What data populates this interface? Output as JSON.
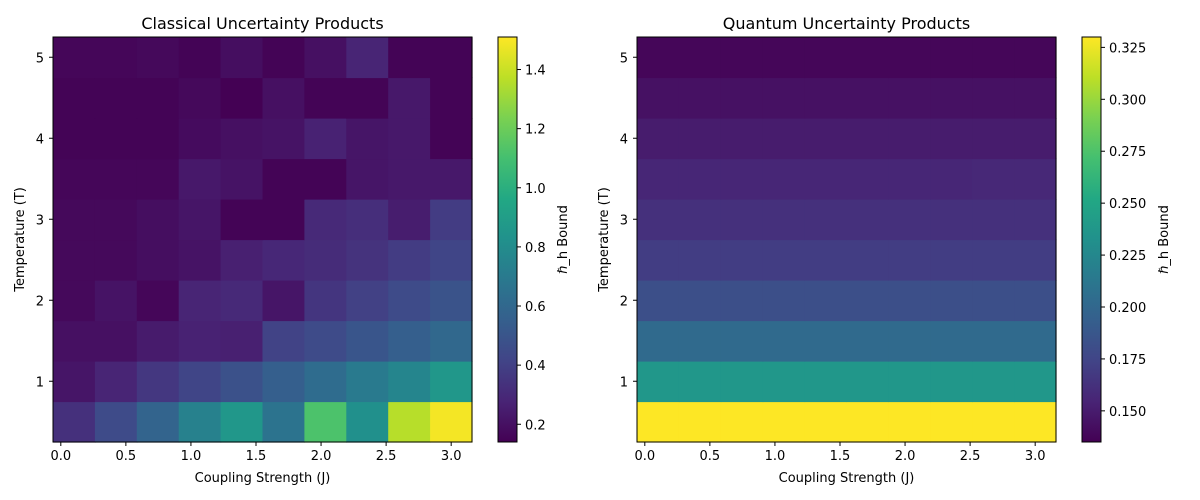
{
  "chart_data": [
    {
      "type": "heatmap",
      "title": "Classical Uncertainty Products",
      "xlabel": "Coupling Strength (J)",
      "ylabel": "Temperature (T)",
      "colorbar_label": "ℏ_h Bound",
      "colormap": "viridis",
      "x_range": [
        -0.06,
        3.16
      ],
      "y_range": [
        0.25,
        5.25
      ],
      "x_ticks": [
        "0.0",
        "0.5",
        "1.0",
        "1.5",
        "2.0",
        "2.5",
        "3.0"
      ],
      "y_ticks": [
        "1",
        "2",
        "3",
        "4",
        "5"
      ],
      "x_tick_values": [
        0,
        0.5,
        1.0,
        1.5,
        2.0,
        2.5,
        3.0
      ],
      "y_tick_values": [
        1,
        2,
        3,
        4,
        5
      ],
      "colorbar_range": [
        0.14,
        1.51
      ],
      "colorbar_ticks": [
        "0.2",
        "0.4",
        "0.6",
        "0.8",
        "1.0",
        "1.2",
        "1.4"
      ],
      "colorbar_tick_values": [
        0.2,
        0.4,
        0.6,
        0.8,
        1.0,
        1.2,
        1.4
      ],
      "rows_from_bottom": [
        [
          0.33,
          0.45,
          0.58,
          0.74,
          0.86,
          0.66,
          1.12,
          0.82,
          1.36,
          1.49
        ],
        [
          0.22,
          0.28,
          0.36,
          0.42,
          0.48,
          0.55,
          0.62,
          0.7,
          0.76,
          0.86
        ],
        [
          0.2,
          0.2,
          0.24,
          0.27,
          0.26,
          0.41,
          0.45,
          0.5,
          0.55,
          0.6
        ],
        [
          0.17,
          0.21,
          0.16,
          0.28,
          0.3,
          0.22,
          0.35,
          0.4,
          0.45,
          0.49
        ],
        [
          0.17,
          0.17,
          0.19,
          0.21,
          0.26,
          0.29,
          0.31,
          0.34,
          0.38,
          0.42
        ],
        [
          0.17,
          0.17,
          0.19,
          0.22,
          0.15,
          0.15,
          0.3,
          0.32,
          0.25,
          0.38
        ],
        [
          0.16,
          0.16,
          0.16,
          0.23,
          0.21,
          0.15,
          0.15,
          0.22,
          0.23,
          0.23
        ],
        [
          0.15,
          0.15,
          0.15,
          0.18,
          0.2,
          0.21,
          0.27,
          0.22,
          0.23,
          0.15
        ],
        [
          0.15,
          0.15,
          0.15,
          0.17,
          0.14,
          0.2,
          0.15,
          0.15,
          0.23,
          0.15
        ],
        [
          0.16,
          0.16,
          0.17,
          0.15,
          0.19,
          0.15,
          0.2,
          0.28,
          0.15,
          0.15
        ]
      ]
    },
    {
      "type": "heatmap",
      "title": "Quantum Uncertainty Products",
      "xlabel": "Coupling Strength (J)",
      "ylabel": "Temperature (T)",
      "colorbar_label": "ℏ_h Bound",
      "colormap": "viridis",
      "x_range": [
        -0.06,
        3.16
      ],
      "y_range": [
        0.25,
        5.25
      ],
      "x_ticks": [
        "0.0",
        "0.5",
        "1.0",
        "1.5",
        "2.0",
        "2.5",
        "3.0"
      ],
      "y_ticks": [
        "1",
        "2",
        "3",
        "4",
        "5"
      ],
      "x_tick_values": [
        0,
        0.5,
        1.0,
        1.5,
        2.0,
        2.5,
        3.0
      ],
      "y_tick_values": [
        1,
        2,
        3,
        4,
        5
      ],
      "colorbar_range": [
        0.135,
        0.33
      ],
      "colorbar_ticks": [
        "0.150",
        "0.175",
        "0.200",
        "0.225",
        "0.250",
        "0.275",
        "0.300",
        "0.325"
      ],
      "colorbar_tick_values": [
        0.15,
        0.175,
        0.2,
        0.225,
        0.25,
        0.275,
        0.3,
        0.325
      ],
      "rows_from_bottom": [
        [
          0.33,
          0.33,
          0.33,
          0.33,
          0.33,
          0.33,
          0.33,
          0.33,
          0.33,
          0.33
        ],
        [
          0.238,
          0.238,
          0.238,
          0.238,
          0.238,
          0.238,
          0.238,
          0.238,
          0.238,
          0.238
        ],
        [
          0.202,
          0.202,
          0.202,
          0.202,
          0.202,
          0.202,
          0.202,
          0.202,
          0.202,
          0.202
        ],
        [
          0.182,
          0.182,
          0.182,
          0.182,
          0.182,
          0.182,
          0.182,
          0.182,
          0.182,
          0.182
        ],
        [
          0.17,
          0.17,
          0.17,
          0.17,
          0.17,
          0.17,
          0.17,
          0.17,
          0.17,
          0.17
        ],
        [
          0.162,
          0.162,
          0.162,
          0.162,
          0.162,
          0.162,
          0.162,
          0.162,
          0.162,
          0.162
        ],
        [
          0.156,
          0.156,
          0.156,
          0.156,
          0.156,
          0.156,
          0.156,
          0.156,
          0.157,
          0.157
        ],
        [
          0.15,
          0.15,
          0.15,
          0.15,
          0.15,
          0.15,
          0.15,
          0.15,
          0.15,
          0.15
        ],
        [
          0.144,
          0.144,
          0.144,
          0.144,
          0.144,
          0.144,
          0.144,
          0.144,
          0.144,
          0.144
        ],
        [
          0.138,
          0.138,
          0.138,
          0.138,
          0.138,
          0.138,
          0.138,
          0.138,
          0.138,
          0.138
        ]
      ]
    }
  ]
}
